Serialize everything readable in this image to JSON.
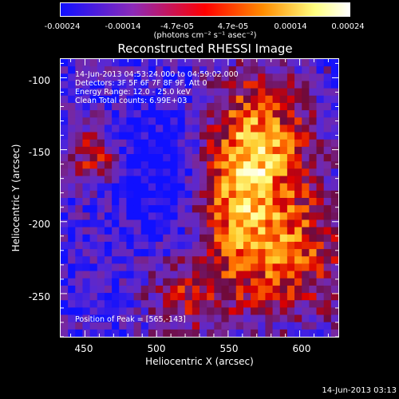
{
  "colorbar": {
    "ticks": [
      "-0.00024",
      "-0.00014",
      "-4.7e-05",
      "4.7e-05",
      "0.00014",
      "0.00024"
    ],
    "unit": "(photons cm⁻² s⁻¹ asec⁻²)",
    "colors": [
      "#1010ff",
      "#8c2ab8",
      "#ff0000",
      "#ff8c00",
      "#ffff80",
      "#ffffff"
    ]
  },
  "image": {
    "title": "Reconstructed RHESSI Image",
    "annotations": {
      "time_range": "14-Jun-2013 04:53:24.000 to 04:59:02.000",
      "detectors": "Detectors: 3F 5F 6F 7F 8F 9F, Att 0",
      "energy": "Energy Range: 12.0 - 25.0 keV",
      "method": "Clean     Total counts: 6.99E+03",
      "peak": "Position of Peak = [565,-143]"
    },
    "peak_position": [
      565,
      -143
    ]
  },
  "axes": {
    "xlabel": "Heliocentric X (arcsec)",
    "ylabel": "Heliocentric Y (arcsec)",
    "xticks": [
      "450",
      "500",
      "550",
      "600"
    ],
    "yticks": [
      "-100",
      "-150",
      "-200",
      "-250"
    ],
    "xlim": [
      433,
      627
    ],
    "ylim": [
      -280,
      -87
    ]
  },
  "footer": "14-Jun-2013 03:13"
}
